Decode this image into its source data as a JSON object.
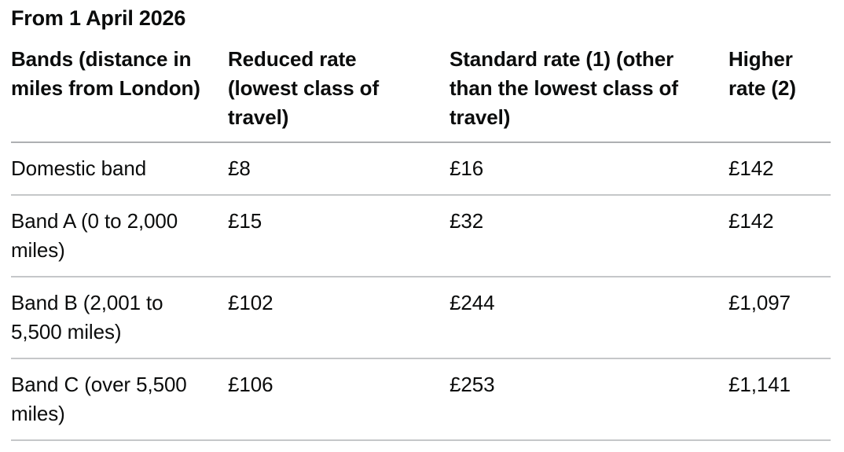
{
  "page": {
    "title": "From 1 April 2026"
  },
  "table": {
    "columns": [
      "Bands (distance in miles from London)",
      "Reduced rate (lowest class of travel)",
      "Standard rate (1) (other than the lowest class of travel)",
      "Higher rate (2)"
    ],
    "rows": [
      [
        "Domestic band",
        "£8",
        "£16",
        "£142"
      ],
      [
        "Band A (0 to 2,000 miles)",
        "£15",
        "£32",
        "£142"
      ],
      [
        "Band B (2,001 to 5,500 miles)",
        "£102",
        "£244",
        "£1,097"
      ],
      [
        "Band C (over 5,500 miles)",
        "£106",
        "£253",
        "£1,141"
      ]
    ]
  },
  "colors": {
    "text": "#0b0c0c",
    "header_border": "#aeb0b2",
    "row_border": "#c5c7c9",
    "background": "#ffffff"
  }
}
